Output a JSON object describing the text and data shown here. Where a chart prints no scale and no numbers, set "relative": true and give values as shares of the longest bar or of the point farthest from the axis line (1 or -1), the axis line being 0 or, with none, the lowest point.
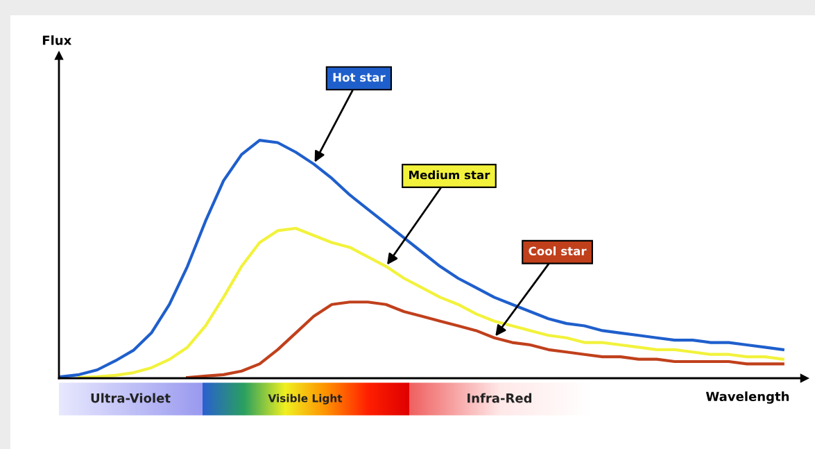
{
  "chart_data": {
    "type": "line",
    "relative": true,
    "xlabel": "Wavelength",
    "categories": [
      null,
      null,
      null,
      null,
      null,
      null,
      null,
      null,
      null,
      null,
      null,
      null,
      null,
      null,
      null,
      null,
      null,
      null,
      null,
      null,
      null,
      null,
      null,
      null,
      null,
      null,
      null,
      null,
      null,
      null,
      null,
      null,
      null,
      null,
      null,
      null,
      null,
      null,
      null,
      null,
      null
    ],
    "series": [
      {
        "name": "Hot star",
        "color": "#1f5fcc",
        "values": [
          0.006,
          0.015,
          0.035,
          0.073,
          0.117,
          0.19,
          0.31,
          0.47,
          0.66,
          0.83,
          0.94,
          1,
          0.99,
          0.95,
          0.9,
          0.84,
          0.77,
          0.71,
          0.65,
          0.59,
          0.53,
          0.47,
          0.42,
          0.38,
          0.34,
          0.31,
          0.28,
          0.25,
          0.23,
          0.22,
          0.2,
          0.19,
          0.18,
          0.17,
          0.16,
          0.16,
          0.15,
          0.15,
          0.14,
          0.13,
          0.12
        ]
      },
      {
        "name": "Medium star",
        "color": "#f2f23c",
        "values": [
          null,
          0.003,
          0.006,
          0.012,
          0.023,
          0.044,
          0.079,
          0.13,
          0.22,
          0.34,
          0.47,
          0.57,
          0.62,
          0.63,
          0.6,
          0.57,
          0.55,
          0.51,
          0.47,
          0.42,
          0.38,
          0.34,
          0.31,
          0.27,
          0.24,
          0.22,
          0.2,
          0.18,
          0.17,
          0.15,
          0.15,
          0.14,
          0.13,
          0.12,
          0.12,
          0.11,
          0.1,
          0.1,
          0.09,
          0.09,
          0.08
        ]
      },
      {
        "name": "Cool star",
        "color": "#c0401c",
        "values": [
          null,
          null,
          null,
          null,
          null,
          null,
          null,
          0.003,
          0.009,
          0.015,
          0.03,
          0.06,
          0.12,
          0.19,
          0.26,
          0.31,
          0.32,
          0.32,
          0.31,
          0.28,
          0.26,
          0.24,
          0.22,
          0.2,
          0.17,
          0.15,
          0.14,
          0.12,
          0.11,
          0.1,
          0.09,
          0.09,
          0.08,
          0.08,
          0.07,
          0.07,
          0.07,
          0.07,
          0.06,
          0.06,
          0.06
        ]
      }
    ],
    "annotations": [
      "Flux",
      "Ultra-Violet",
      "Visible Light",
      "Infra-Red"
    ],
    "legend": false,
    "marker": "none",
    "line_style": "solid"
  }
}
